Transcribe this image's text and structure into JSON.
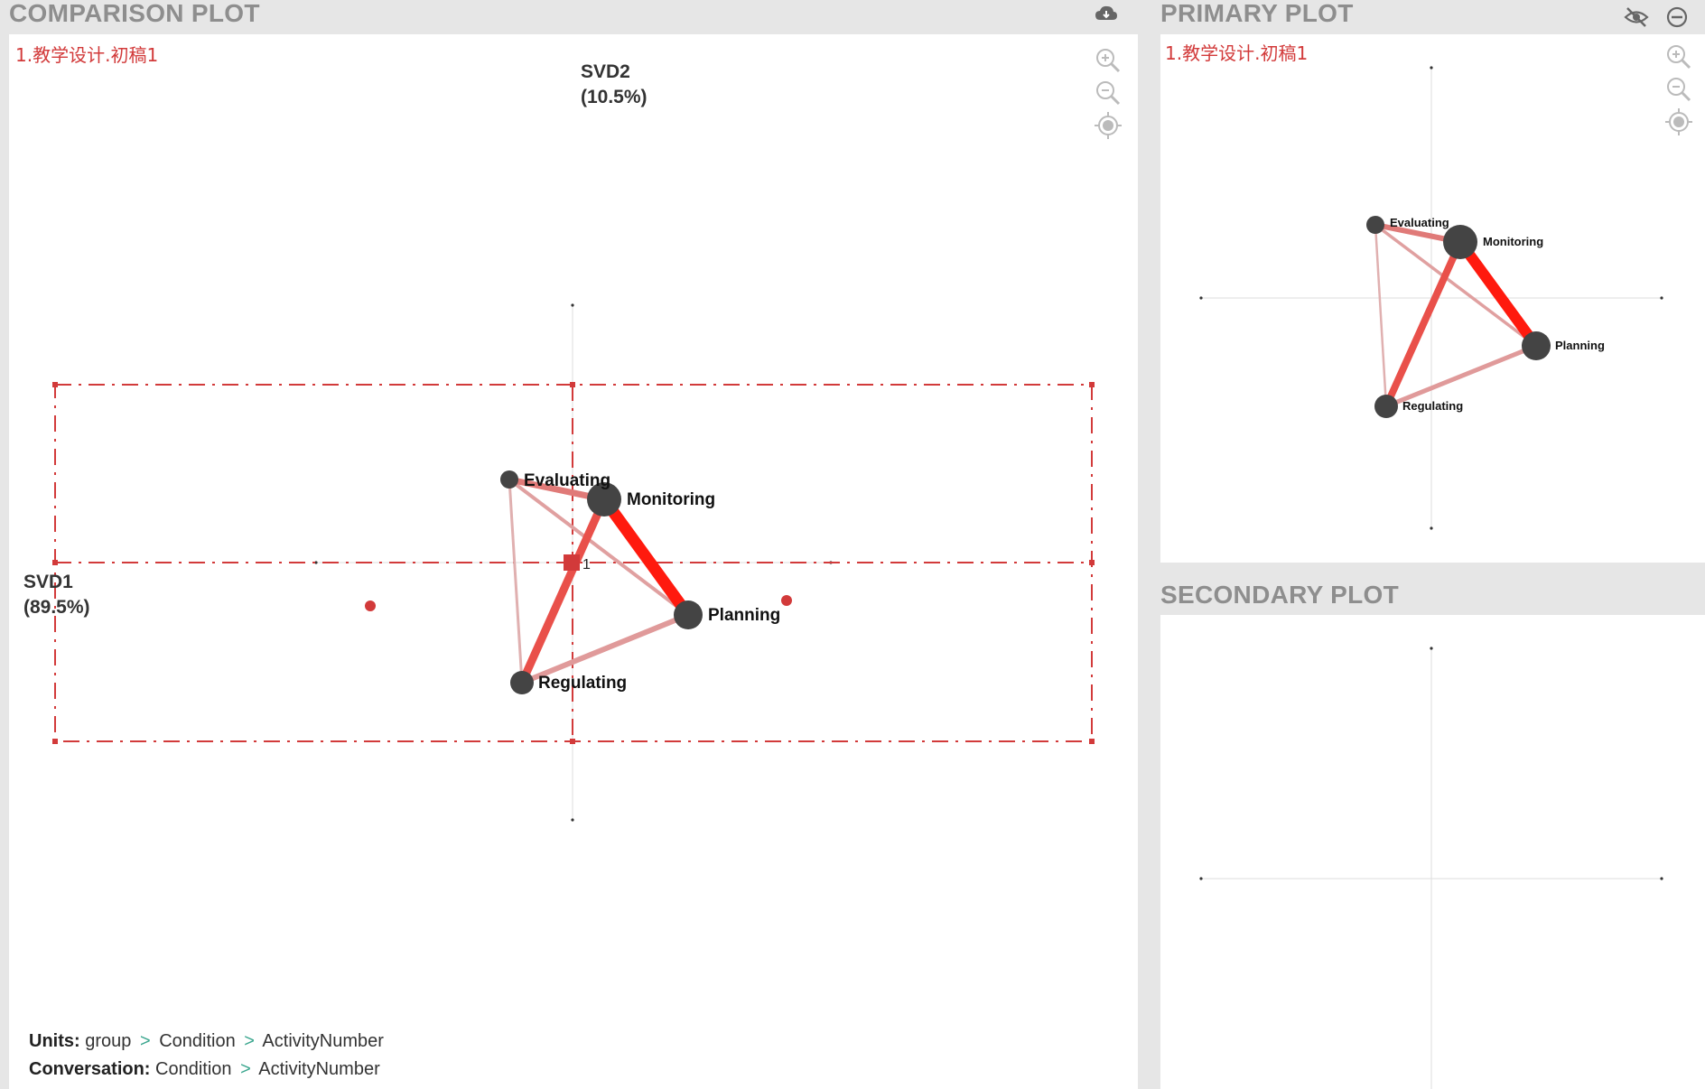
{
  "comparison": {
    "title": "COMPARISON PLOT",
    "plot_label": "1.教学设计.初稿1",
    "axis_y_label": "SVD2",
    "axis_y_pct": "(10.5%)",
    "axis_x_label": "SVD1",
    "axis_x_pct": "(89.5%)",
    "centroid_label": "1",
    "footer": {
      "units_label": "Units:",
      "units_path": [
        "group",
        "Condition",
        "ActivityNumber"
      ],
      "conversation_label": "Conversation:",
      "conversation_path": [
        "Condition",
        "ActivityNumber"
      ],
      "separator": ">"
    }
  },
  "primary": {
    "title": "PRIMARY PLOT",
    "plot_label": "1.教学设计.初稿1"
  },
  "secondary": {
    "title": "SECONDARY PLOT"
  },
  "network": {
    "nodes": [
      {
        "name": "Evaluating"
      },
      {
        "name": "Monitoring"
      },
      {
        "name": "Planning"
      },
      {
        "name": "Regulating"
      }
    ]
  },
  "icons": {
    "cloud_download": "cloud-download-icon",
    "hide": "eye-slash-icon",
    "minimize": "minus-circle-icon",
    "zoom_in": "zoom-in-icon",
    "zoom_out": "zoom-out-icon",
    "recenter": "target-icon"
  },
  "colors": {
    "accent_red": "#d23a3a",
    "edge_strong": "#ff1a0e",
    "edge_medium": "#e9504a",
    "edge_light": "#e0a0a0",
    "node": "#444444",
    "footer_arrow": "#3aa68e"
  }
}
